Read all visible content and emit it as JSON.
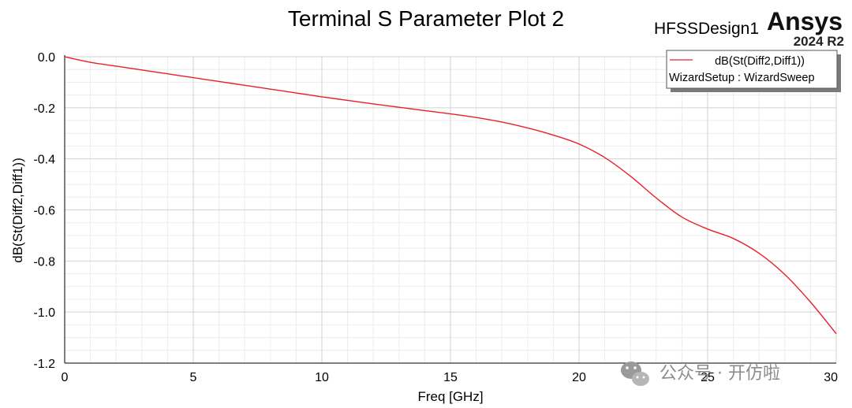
{
  "header": {
    "title": "Terminal S Parameter Plot 2",
    "design_name": "HFSSDesign1",
    "brand": "Ansys",
    "version": "2024 R2"
  },
  "legend": {
    "entries": [
      {
        "label": "dB(St(Diff2,Diff1))",
        "color": "#e8202a"
      }
    ],
    "setup": "WizardSetup : WizardSweep"
  },
  "watermark": {
    "text": "公众号 · 开仿啦"
  },
  "chart_data": {
    "type": "line",
    "title": "Terminal S Parameter Plot 2",
    "xlabel": "Freq [GHz]",
    "ylabel": "dB(St(Diff2,Diff1))",
    "xlim": [
      0,
      30
    ],
    "ylim": [
      -1.2,
      0.0
    ],
    "xticks": [
      0,
      5,
      10,
      15,
      20,
      25,
      30
    ],
    "xtick_labels": [
      "0",
      "5",
      "10",
      "15",
      "20",
      "25",
      "30"
    ],
    "yticks": [
      0.0,
      -0.2,
      -0.4,
      -0.6,
      -0.8,
      -1.0,
      -1.2
    ],
    "ytick_labels": [
      "0.0",
      "-0.2",
      "-0.4",
      "-0.6",
      "-0.8",
      "-1.0",
      "-1.2"
    ],
    "grid": true,
    "legend_position": "top-right",
    "series": [
      {
        "name": "dB(St(Diff2,Diff1))",
        "color": "#e8202a",
        "x": [
          0,
          0.25,
          1,
          2,
          3,
          4,
          5,
          6,
          7,
          8,
          9,
          10,
          11,
          12,
          13,
          14,
          15,
          16,
          17,
          18,
          19,
          20,
          21,
          22,
          23,
          24,
          25,
          26,
          27,
          28,
          29,
          30
        ],
        "y": [
          0.0,
          -0.006,
          -0.022,
          -0.037,
          -0.052,
          -0.067,
          -0.082,
          -0.097,
          -0.112,
          -0.127,
          -0.142,
          -0.157,
          -0.171,
          -0.185,
          -0.198,
          -0.211,
          -0.224,
          -0.238,
          -0.256,
          -0.279,
          -0.307,
          -0.342,
          -0.395,
          -0.468,
          -0.553,
          -0.628,
          -0.675,
          -0.712,
          -0.77,
          -0.853,
          -0.961,
          -1.085
        ]
      }
    ]
  }
}
